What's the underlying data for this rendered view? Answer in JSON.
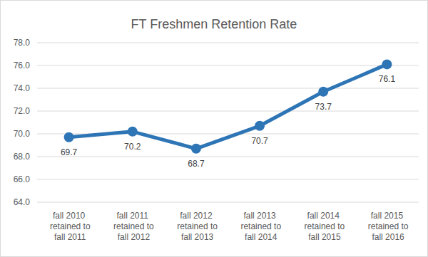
{
  "chart_data": {
    "type": "line",
    "title": "FT Freshmen Retention Rate",
    "categories": [
      "fall 2010 retained to fall 2011",
      "fall 2011 retained to fall 2012",
      "fall 2012 retained to fall 2013",
      "fall 2013 retained to fall 2014",
      "fall 2014 retained to fall 2015",
      "fall 2015 retained to fall 2016"
    ],
    "values": [
      69.7,
      70.2,
      68.7,
      70.7,
      73.7,
      76.1
    ],
    "color": "#2e75b6",
    "marker": "circle",
    "ylim": [
      64,
      78
    ],
    "yticks": [
      {
        "value": 64,
        "label": "64.0"
      },
      {
        "value": 66,
        "label": "66.0"
      },
      {
        "value": 68,
        "label": "68.0"
      },
      {
        "value": 70,
        "label": "70.0"
      },
      {
        "value": 72,
        "label": "72.0"
      },
      {
        "value": 74,
        "label": "74.0"
      },
      {
        "value": 76,
        "label": "76.0"
      },
      {
        "value": 78,
        "label": "78.0"
      }
    ],
    "grid": true,
    "data_labels": true
  }
}
